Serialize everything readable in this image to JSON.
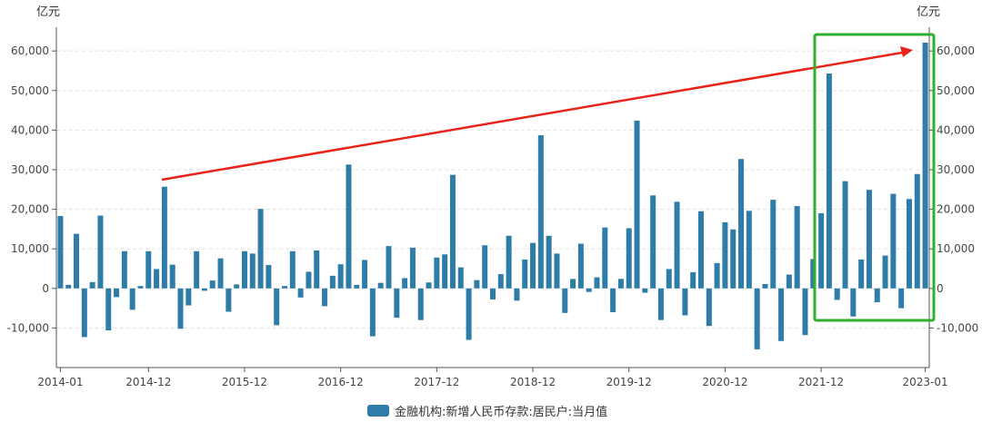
{
  "chart_data": {
    "type": "bar",
    "title": "",
    "unit_left": "亿元",
    "unit_right": "亿元",
    "x_tick_labels": [
      "2014-01",
      "2014-12",
      "2015-12",
      "2016-12",
      "2017-12",
      "2018-12",
      "2019-12",
      "2020-12",
      "2021-12",
      "2023-01"
    ],
    "y_tick_labels": [
      "-10,000",
      "0",
      "10,000",
      "20,000",
      "30,000",
      "40,000",
      "50,000",
      "60,000"
    ],
    "y_ticks": [
      -10000,
      0,
      10000,
      20000,
      30000,
      40000,
      50000,
      60000
    ],
    "ylim": [
      -20000,
      66000
    ],
    "grid": true,
    "legend_position": "bottom",
    "series": [
      {
        "name": "金融机构:新增人民币存款:居民户:当月值",
        "color": "#2e7ca8",
        "x": [
          "2014-01",
          "2014-02",
          "2014-03",
          "2014-04",
          "2014-05",
          "2014-06",
          "2014-07",
          "2014-08",
          "2014-09",
          "2014-10",
          "2014-11",
          "2014-12",
          "2015-01",
          "2015-02",
          "2015-03",
          "2015-04",
          "2015-05",
          "2015-06",
          "2015-07",
          "2015-08",
          "2015-09",
          "2015-10",
          "2015-11",
          "2015-12",
          "2016-01",
          "2016-02",
          "2016-03",
          "2016-04",
          "2016-05",
          "2016-06",
          "2016-07",
          "2016-08",
          "2016-09",
          "2016-10",
          "2016-11",
          "2016-12",
          "2017-01",
          "2017-02",
          "2017-03",
          "2017-04",
          "2017-05",
          "2017-06",
          "2017-07",
          "2017-08",
          "2017-09",
          "2017-10",
          "2017-11",
          "2017-12",
          "2018-01",
          "2018-02",
          "2018-03",
          "2018-04",
          "2018-05",
          "2018-06",
          "2018-07",
          "2018-08",
          "2018-09",
          "2018-10",
          "2018-11",
          "2018-12",
          "2019-01",
          "2019-02",
          "2019-03",
          "2019-04",
          "2019-05",
          "2019-06",
          "2019-07",
          "2019-08",
          "2019-09",
          "2019-10",
          "2019-11",
          "2019-12",
          "2020-01",
          "2020-02",
          "2020-03",
          "2020-04",
          "2020-05",
          "2020-06",
          "2020-07",
          "2020-08",
          "2020-09",
          "2020-10",
          "2020-11",
          "2020-12",
          "2021-01",
          "2021-02",
          "2021-03",
          "2021-04",
          "2021-05",
          "2021-06",
          "2021-07",
          "2021-08",
          "2021-09",
          "2021-10",
          "2021-11",
          "2021-12",
          "2022-01",
          "2022-02",
          "2022-03",
          "2022-04",
          "2022-05",
          "2022-06",
          "2022-07",
          "2022-08",
          "2022-09",
          "2022-10",
          "2022-11",
          "2022-12",
          "2023-01"
        ],
        "values": [
          18300,
          900,
          13800,
          -12300,
          1600,
          18400,
          -10600,
          -2200,
          9400,
          -5400,
          600,
          9400,
          4900,
          25700,
          6000,
          -10200,
          -4300,
          9400,
          -600,
          2000,
          7600,
          -5900,
          1000,
          9400,
          8800,
          20100,
          5900,
          -9300,
          600,
          9400,
          -2300,
          4200,
          9600,
          -4500,
          3200,
          6100,
          31300,
          900,
          7200,
          -12100,
          1400,
          10700,
          -7400,
          2600,
          10300,
          -8000,
          1500,
          7800,
          8600,
          28700,
          5300,
          -13000,
          2100,
          10900,
          -2800,
          3600,
          13300,
          -3100,
          7300,
          11500,
          38700,
          13300,
          8800,
          -6200,
          2400,
          11300,
          -900,
          2800,
          15400,
          -6000,
          2400,
          15200,
          42400,
          -1100,
          23500,
          -8000,
          4900,
          21900,
          -6800,
          4100,
          19500,
          -9500,
          6400,
          16700,
          14900,
          32700,
          19600,
          -15400,
          1100,
          22400,
          -13300,
          3500,
          20800,
          -11800,
          7400,
          19000,
          54300,
          -2900,
          27100,
          -7100,
          7300,
          24900,
          -3500,
          8300,
          23900,
          -5000,
          22600,
          28900,
          62100
        ]
      }
    ]
  }
}
